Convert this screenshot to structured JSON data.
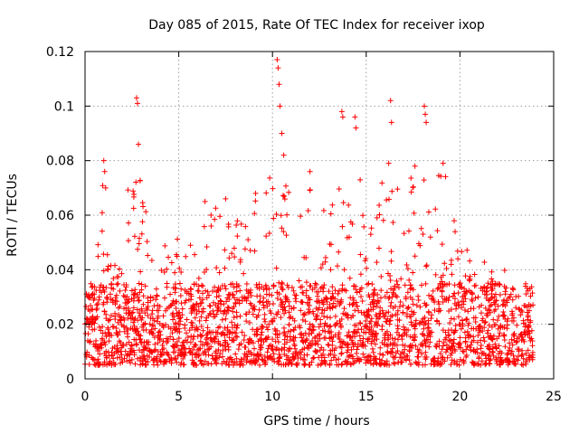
{
  "chart_data": {
    "type": "scatter",
    "title": "Day 085 of 2015, Rate Of TEC Index for receiver ixop",
    "xlabel": "GPS time / hours",
    "ylabel": "ROTI / TECUs",
    "xlim": [
      0,
      25
    ],
    "ylim": [
      0,
      0.12
    ],
    "x_ticks": [
      0,
      5,
      10,
      15,
      20,
      25
    ],
    "x_tick_labels": [
      "0",
      "5",
      "10",
      "15",
      "20",
      "25"
    ],
    "y_ticks": [
      0,
      0.02,
      0.04,
      0.06,
      0.08,
      0.1,
      0.12
    ],
    "y_tick_labels": [
      "0",
      "0.02",
      "0.04",
      "0.06",
      "0.08",
      "0.1",
      "0.12"
    ],
    "grid": true,
    "marker": "+",
    "marker_color": "#ff0000",
    "series": [
      {
        "name": "ROTI",
        "x_range": [
          0.0,
          23.9
        ],
        "typical_range": [
          0.005,
          0.035
        ],
        "notable_points": [
          {
            "x": 1.0,
            "y": 0.08
          },
          {
            "x": 1.05,
            "y": 0.076
          },
          {
            "x": 1.1,
            "y": 0.07
          },
          {
            "x": 2.75,
            "y": 0.103
          },
          {
            "x": 2.8,
            "y": 0.101
          },
          {
            "x": 2.85,
            "y": 0.086
          },
          {
            "x": 10.25,
            "y": 0.117
          },
          {
            "x": 10.3,
            "y": 0.114
          },
          {
            "x": 10.35,
            "y": 0.108
          },
          {
            "x": 10.4,
            "y": 0.1
          },
          {
            "x": 10.5,
            "y": 0.09
          },
          {
            "x": 10.6,
            "y": 0.082
          },
          {
            "x": 13.7,
            "y": 0.098
          },
          {
            "x": 13.75,
            "y": 0.096
          },
          {
            "x": 14.4,
            "y": 0.096
          },
          {
            "x": 14.45,
            "y": 0.092
          },
          {
            "x": 16.3,
            "y": 0.102
          },
          {
            "x": 16.35,
            "y": 0.094
          },
          {
            "x": 18.1,
            "y": 0.1
          },
          {
            "x": 18.15,
            "y": 0.097
          },
          {
            "x": 18.2,
            "y": 0.094
          },
          {
            "x": 19.1,
            "y": 0.079
          },
          {
            "x": 12.0,
            "y": 0.076
          },
          {
            "x": 6.4,
            "y": 0.065
          },
          {
            "x": 7.5,
            "y": 0.066
          },
          {
            "x": 9.1,
            "y": 0.068
          },
          {
            "x": 17.6,
            "y": 0.078
          },
          {
            "x": 16.2,
            "y": 0.079
          }
        ],
        "envelope": [
          {
            "x": 0.5,
            "max": 0.037
          },
          {
            "x": 1.0,
            "max": 0.08
          },
          {
            "x": 1.5,
            "max": 0.04
          },
          {
            "x": 2.0,
            "max": 0.05
          },
          {
            "x": 2.8,
            "max": 0.103
          },
          {
            "x": 3.5,
            "max": 0.045
          },
          {
            "x": 4.2,
            "max": 0.055
          },
          {
            "x": 5.0,
            "max": 0.055
          },
          {
            "x": 6.0,
            "max": 0.05
          },
          {
            "x": 6.5,
            "max": 0.065
          },
          {
            "x": 7.5,
            "max": 0.066
          },
          {
            "x": 8.5,
            "max": 0.06
          },
          {
            "x": 9.2,
            "max": 0.068
          },
          {
            "x": 10.3,
            "max": 0.117
          },
          {
            "x": 11.0,
            "max": 0.07
          },
          {
            "x": 12.0,
            "max": 0.076
          },
          {
            "x": 13.0,
            "max": 0.06
          },
          {
            "x": 13.8,
            "max": 0.098
          },
          {
            "x": 14.4,
            "max": 0.096
          },
          {
            "x": 15.2,
            "max": 0.065
          },
          {
            "x": 16.3,
            "max": 0.102
          },
          {
            "x": 17.0,
            "max": 0.07
          },
          {
            "x": 18.1,
            "max": 0.1
          },
          {
            "x": 19.1,
            "max": 0.079
          },
          {
            "x": 20.0,
            "max": 0.05
          },
          {
            "x": 21.0,
            "max": 0.045
          },
          {
            "x": 22.0,
            "max": 0.04
          },
          {
            "x": 23.0,
            "max": 0.045
          },
          {
            "x": 23.9,
            "max": 0.035
          }
        ]
      }
    ]
  }
}
